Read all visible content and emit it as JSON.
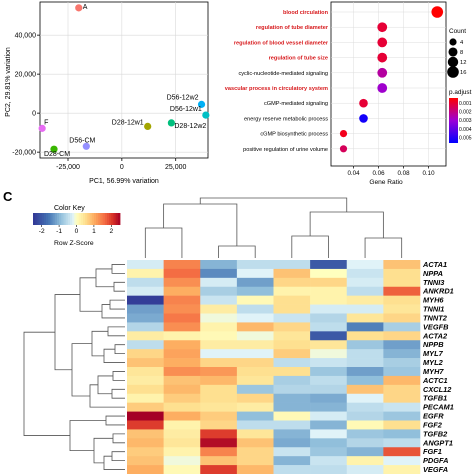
{
  "figure": {
    "panel_c_label": "C"
  },
  "chart_data": [
    {
      "type": "scatter",
      "xlabel": "PC1, 56.99% variation",
      "ylabel": "PC2, 29.81% variation",
      "xticks": [
        "-25,000",
        "0",
        "25,000"
      ],
      "yticks": [
        "40,000",
        "20,000",
        "0",
        "-20,000"
      ],
      "xlim": [
        -38000,
        40000
      ],
      "ylim": [
        -23000,
        57000
      ],
      "points": [
        {
          "label": "A",
          "x": -20000,
          "y": 54000,
          "color": "#f8766d"
        },
        {
          "label": "D56-12w2",
          "x": 37000,
          "y": 4500,
          "color": "#00b0f6"
        },
        {
          "label": "D56-12w1",
          "x": 39000,
          "y": -1000,
          "color": "#00bfc4"
        },
        {
          "label": "D28-12w1",
          "x": 12000,
          "y": -6800,
          "color": "#a3a500"
        },
        {
          "label": "D28-12w2",
          "x": 23000,
          "y": -5000,
          "color": "#00bf7d"
        },
        {
          "label": "F",
          "x": -37000,
          "y": -7800,
          "color": "#e76bf3"
        },
        {
          "label": "D28-CM",
          "x": -31500,
          "y": -18500,
          "color": "#39b600"
        },
        {
          "label": "D56-CM",
          "x": -16500,
          "y": -17000,
          "color": "#9590ff"
        }
      ]
    },
    {
      "type": "scatter",
      "xlabel": "Gene Ratio",
      "xticks": [
        "0.04",
        "0.06",
        "0.08",
        "0.10"
      ],
      "xlim": [
        0.022,
        0.114
      ],
      "categories": [
        "blood circulation",
        "regulation of tube diameter",
        "regulation of blood vessel diameter",
        "regulation of tube size",
        "cyclic-nucleotide-mediated signaling",
        "vascular process in circulatory system",
        "cGMP-mediated signaling",
        "energy reserve metabolic process",
        "cGMP biosynthetic process",
        "positive regulation of urine volume"
      ],
      "highlighted": [
        true,
        true,
        true,
        true,
        false,
        true,
        false,
        false,
        false,
        false
      ],
      "values": [
        0.107,
        0.063,
        0.063,
        0.063,
        0.063,
        0.063,
        0.048,
        0.048,
        0.032,
        0.032
      ],
      "counts": [
        16,
        10,
        10,
        10,
        10,
        10,
        7,
        7,
        4,
        4
      ],
      "p_adjust": [
        0.0002,
        0.0008,
        0.0008,
        0.0008,
        0.002,
        0.0025,
        0.0008,
        0.0047,
        0.0005,
        0.0012
      ],
      "legend": {
        "count_title": "Count",
        "count_values": [
          "4",
          "8",
          "12",
          "16"
        ],
        "padj_title": "p.adjust",
        "padj_ticks": [
          "0.001",
          "0.002",
          "0.003",
          "0.004",
          "0.005"
        ],
        "colors": [
          "#ff0000",
          "#0000ff"
        ]
      }
    },
    {
      "type": "heatmap",
      "color_key": {
        "title": "Color Key",
        "xlabel": "Row Z-Score",
        "ticks": [
          "-2",
          "-1",
          "0",
          "1",
          "2"
        ],
        "range": [
          -2.5,
          2.5
        ]
      },
      "rows": [
        "ACTA1",
        "NPPA",
        "TNNI3",
        "ANKRD1",
        "MYH6",
        "TNNI1",
        "TNNT2",
        "VEGFB",
        "ACTA2",
        "NPPB",
        "MYL7",
        "MYL2",
        "MYH7",
        "ACTC1",
        "CXCL12",
        "TGFB1",
        "PECAM1",
        "EGFR",
        "FGF2",
        "TGFB2",
        "ANGPT1",
        "FGF1",
        "PDGFA",
        "VEGFA"
      ],
      "matrix": [
        [
          -0.3,
          1.4,
          -1.0,
          -0.5,
          -0.5,
          -2.0,
          -0.2,
          0.8
        ],
        [
          0.2,
          1.6,
          -1.4,
          -0.2,
          0.8,
          0.0,
          -0.4,
          0.5
        ],
        [
          -0.5,
          1.3,
          -0.3,
          -1.2,
          0.6,
          0.6,
          -0.3,
          0.5
        ],
        [
          -0.3,
          1.0,
          -0.7,
          -0.9,
          0.2,
          0.2,
          -0.5,
          1.7
        ],
        [
          -2.4,
          1.4,
          -0.4,
          0.1,
          0.5,
          0.2,
          0.3,
          0.5
        ],
        [
          -1.2,
          1.3,
          0.3,
          -0.5,
          0.5,
          -0.3,
          -0.3,
          0.4
        ],
        [
          -1.1,
          1.5,
          -0.1,
          -0.2,
          -0.4,
          -0.6,
          0.4,
          0.6
        ],
        [
          -0.6,
          1.3,
          0.2,
          0.9,
          0.6,
          -0.5,
          -1.5,
          -0.7
        ],
        [
          0.3,
          0.2,
          0.1,
          -0.1,
          0.4,
          -2.0,
          0.5,
          0.6
        ],
        [
          -0.5,
          1.0,
          0.3,
          0.3,
          0.5,
          0.4,
          -0.8,
          -1.2
        ],
        [
          0.6,
          1.1,
          -0.2,
          -0.2,
          0.7,
          -0.1,
          -0.5,
          -1.0
        ],
        [
          0.8,
          1.0,
          0.6,
          0.6,
          -0.5,
          -0.4,
          -0.5,
          -0.7
        ],
        [
          0.4,
          1.3,
          1.2,
          0.5,
          0.5,
          -0.8,
          -1.2,
          -0.8
        ],
        [
          0.3,
          0.8,
          0.9,
          0.4,
          -0.7,
          -0.5,
          -0.9,
          0.9
        ],
        [
          0.5,
          0.9,
          0.5,
          -0.8,
          -0.6,
          -0.6,
          0.8,
          0.6
        ],
        [
          0.2,
          0.7,
          0.5,
          0.6,
          -1.0,
          -1.1,
          -0.2,
          0.6
        ],
        [
          0.7,
          0.5,
          0.4,
          0.3,
          -1.0,
          -1.0,
          -0.5,
          -0.4
        ],
        [
          2.5,
          1.0,
          0.7,
          -0.9,
          0.1,
          -0.3,
          -0.6,
          -0.8
        ],
        [
          2.0,
          0.2,
          0.6,
          -0.5,
          -0.5,
          -1.0,
          0.1,
          0.5
        ],
        [
          0.8,
          0.3,
          2.0,
          0.4,
          -1.0,
          -0.2,
          -0.8,
          -0.9
        ],
        [
          0.9,
          0.4,
          2.4,
          0.8,
          -1.1,
          -0.9,
          -0.6,
          -0.5
        ],
        [
          0.7,
          0.2,
          1.4,
          0.6,
          -0.4,
          -0.8,
          -1.0,
          1.8
        ],
        [
          0.8,
          -0.1,
          0.8,
          0.6,
          -1.0,
          -0.4,
          0.2,
          -0.2
        ],
        [
          1.0,
          0.1,
          2.0,
          0.9,
          -0.5,
          -0.5,
          -0.3,
          0.2
        ]
      ]
    }
  ]
}
